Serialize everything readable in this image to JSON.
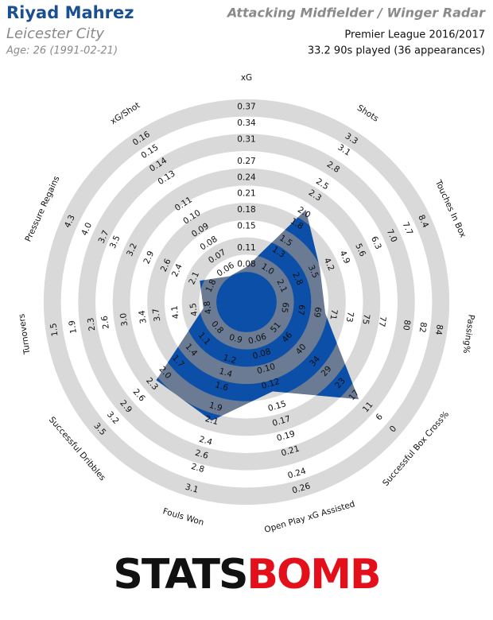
{
  "header": {
    "player": "Riyad Mahrez",
    "team": "Leicester City",
    "age": "Age: 26 (1991-02-21)",
    "competition": "Premier League 2016/2017",
    "minutes": "33.2 90s played (36 appearances)"
  },
  "chart_data": {
    "type": "radar",
    "title": "Attacking Midfielder / Winger Radar",
    "categories": [
      "xG",
      "Shots",
      "Touches In Box",
      "Passing%",
      "Successful Box Cross%",
      "Open Play xG Assisted",
      "Fouls Won",
      "Successful Dribbles",
      "Turnovers",
      "Pressure Regains",
      "xG/Shot"
    ],
    "values": [
      0.075,
      2.05,
      3.8,
      70,
      15,
      0.13,
      2.1,
      2.2,
      4.7,
      2.0,
      0.055
    ],
    "color": "#0b4fa8",
    "alt_color": "#6a7b93",
    "axes": [
      {
        "lim": [
          0.05,
          0.4
        ],
        "ticks": [
          0.08,
          0.11,
          0.15,
          0.18,
          0.21,
          0.24,
          0.27,
          0.31,
          0.34,
          0.37
        ]
      },
      {
        "lim": [
          0.74,
          3.56
        ],
        "ticks": [
          {
            "value": 1,
            "label": "1.0"
          },
          1.3,
          1.5,
          1.8,
          {
            "value": 2,
            "label": "2.0"
          },
          2.3,
          2.5,
          2.8,
          3.1,
          3.3
        ]
      },
      {
        "lim": [
          1.4,
          9.1
        ],
        "ticks": [
          2.1,
          2.8,
          3.5,
          4.2,
          4.9,
          5.6,
          6.3,
          {
            "value": 7,
            "label": "7.0"
          },
          7.7,
          8.4
        ]
      },
      {
        "lim": [
          62.9,
          86.1
        ],
        "ticks": [
          65,
          67,
          69,
          71,
          73,
          75,
          77,
          80,
          82,
          84
        ]
      },
      {
        "lim": [
          56.7,
          -5.7
        ],
        "ticks": [
          51,
          46,
          40,
          34,
          29,
          23,
          17,
          11,
          6,
          0
        ]
      },
      {
        "lim": [
          0.038,
          0.282
        ],
        "ticks": [
          0.06,
          0.08,
          {
            "value": 0.1,
            "label": "0.10"
          },
          0.12,
          0.15,
          0.17,
          0.19,
          0.21,
          0.24,
          0.26
        ]
      },
      {
        "lim": [
          0.66,
          3.34
        ],
        "ticks": [
          0.9,
          1.2,
          1.4,
          1.6,
          1.9,
          2.1,
          2.4,
          2.6,
          2.8,
          3.1
        ]
      },
      {
        "lim": [
          0.5,
          3.8
        ],
        "ticks": [
          0.8,
          1.1,
          1.4,
          1.7,
          {
            "value": 2,
            "label": "2.0"
          },
          2.3,
          2.6,
          2.9,
          3.2,
          3.5
        ]
      },
      {
        "lim": [
          5.17,
          1.13
        ],
        "ticks": [
          4.8,
          4.5,
          4.1,
          3.7,
          3.4,
          {
            "value": 3,
            "label": "3.0"
          },
          2.6,
          2.3,
          1.9,
          1.5
        ]
      },
      {
        "lim": [
          1.52,
          4.58
        ],
        "ticks": [
          1.8,
          2.1,
          2.4,
          2.6,
          2.9,
          3.2,
          3.5,
          3.7,
          {
            "value": 4,
            "label": "4.0"
          },
          4.3
        ]
      },
      {
        "lim": [
          0.049,
          0.171
        ],
        "ticks": [
          0.06,
          0.07,
          0.08,
          0.09,
          {
            "value": 0.1,
            "label": "0.10"
          },
          0.11,
          0.13,
          0.14,
          0.15,
          0.16
        ]
      }
    ]
  },
  "footer": {
    "logo_left": "STATS",
    "logo_right": "BOMB"
  }
}
